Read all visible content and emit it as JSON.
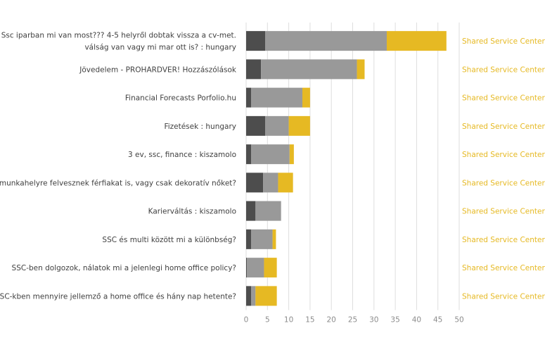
{
  "colors": {
    "series_dark": "#4d4d4d",
    "series_mid": "#999999",
    "series_yellow": "#e6b923",
    "gridline": "#dedede",
    "category_text": "#404040",
    "tick_text": "#8c8c8c",
    "side_label_text": "#e6b923"
  },
  "chart_data": {
    "type": "bar",
    "orientation": "horizontal",
    "stacked": true,
    "categories": [
      [
        "Ssc iparban mi van most??? 4-5 helyről dobtak vissza a cv-met.",
        "válság van vagy mi mar ott is? : hungary"
      ],
      [
        "Jövedelem - PROHARDVER! Hozzászólások"
      ],
      [
        "Financial Forecasts Porfolio.hu"
      ],
      [
        "Fizetések : hungary"
      ],
      [
        "3 ev, ssc, finance : kiszamolo"
      ],
      [
        "SSC jellegű munkahelyre felvesznek férfiakat is, vagy csak dekoratív nőket?"
      ],
      [
        "Karierváltás : kiszamolo"
      ],
      [
        "SSC és multi között mi a különbség?"
      ],
      [
        "SSC-ben dolgozok, nálatok mi a jelenlegi home office policy?"
      ],
      [
        "SSC-kben mennyire jellemző a home office és hány nap hetente?"
      ]
    ],
    "series": [
      {
        "values": [
          4.5,
          3.5,
          1.2,
          4.5,
          1.2,
          4,
          2.2,
          1.2,
          0.2,
          1.2
        ]
      },
      {
        "values": [
          28.5,
          22.5,
          12,
          5.5,
          9,
          3.5,
          6,
          5,
          4,
          1
        ]
      },
      {
        "values": [
          14,
          1.8,
          1.8,
          5,
          1,
          3.5,
          0,
          0.8,
          3,
          5
        ]
      }
    ],
    "side_labels": [
      "Shared Service Center (47)",
      "Shared Service Center (28)",
      "Shared Service Center (15)",
      "Shared Service Center (15)",
      "Shared Service Center (11)",
      "Shared Service Center (11)",
      "Shared Service Center (8)",
      "Shared Service Center (7)",
      "Shared Service Center (7)",
      "Shared Service Center (7)"
    ],
    "x_ticks": [
      0,
      5,
      10,
      15,
      20,
      25,
      30,
      35,
      40,
      45,
      50
    ],
    "xlim": [
      0,
      50
    ],
    "title": "",
    "xlabel": "",
    "ylabel": "",
    "grid": "vertical",
    "legend": "none"
  }
}
